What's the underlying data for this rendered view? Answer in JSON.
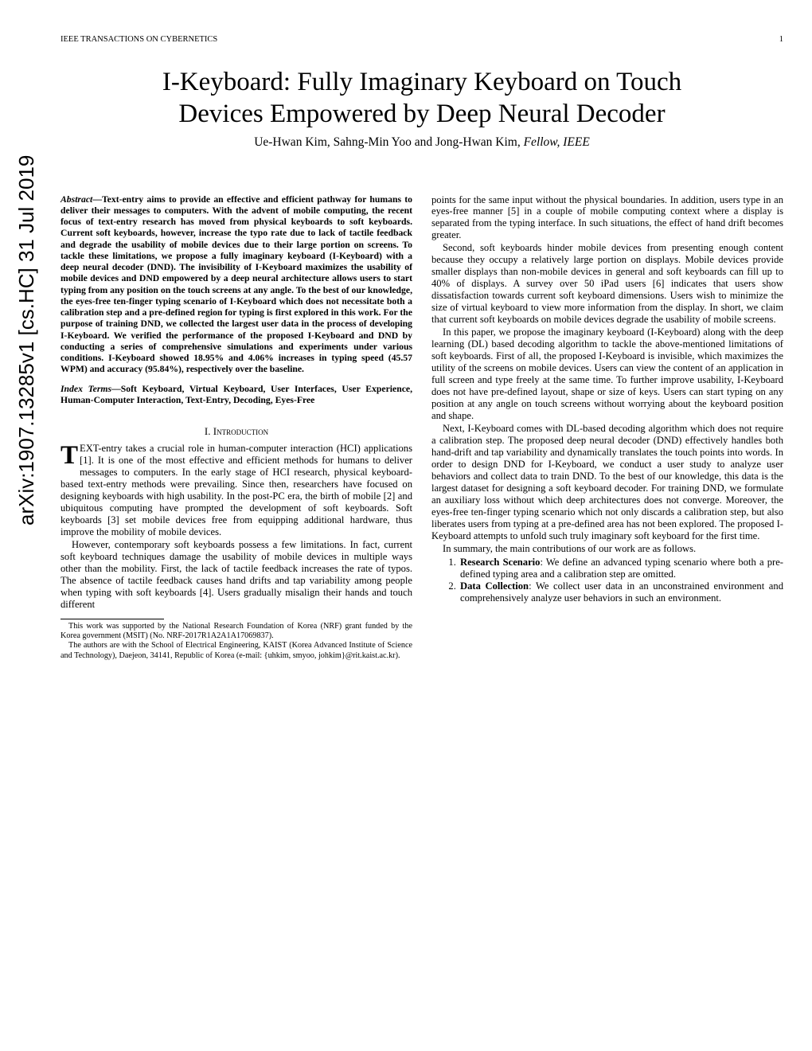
{
  "arxiv_id": "arXiv:1907.13285v1  [cs.HC]  31 Jul 2019",
  "running_head": {
    "left": "IEEE TRANSACTIONS ON CYBERNETICS",
    "page": "1"
  },
  "title_line1": "I-Keyboard: Fully Imaginary Keyboard on Touch",
  "title_line2": "Devices Empowered by Deep Neural Decoder",
  "authors_plain": "Ue-Hwan Kim, Sahng-Min Yoo and Jong-Hwan Kim, ",
  "authors_fellow": "Fellow, IEEE",
  "abstract_label": "Abstract",
  "abstract_body": "—Text-entry aims to provide an effective and efficient pathway for humans to deliver their messages to computers. With the advent of mobile computing, the recent focus of text-entry research has moved from physical keyboards to soft keyboards. Current soft keyboards, however, increase the typo rate due to lack of tactile feedback and degrade the usability of mobile devices due to their large portion on screens. To tackle these limitations, we propose a fully imaginary keyboard (I-Keyboard) with a deep neural decoder (DND). The invisibility of I-Keyboard maximizes the usability of mobile devices and DND empowered by a deep neural architecture allows users to start typing from any position on the touch screens at any angle. To the best of our knowledge, the eyes-free ten-finger typing scenario of I-Keyboard which does not necessitate both a calibration step and a pre-defined region for typing is first explored in this work. For the purpose of training DND, we collected the largest user data in the process of developing I-Keyboard. We verified the performance of the proposed I-Keyboard and DND by conducting a series of comprehensive simulations and experiments under various conditions. I-Keyboard showed 18.95% and 4.06% increases in typing speed (45.57 WPM) and accuracy (95.84%), respectively over the baseline.",
  "index_label": "Index Terms",
  "index_body": "—Soft Keyboard, Virtual Keyboard, User Interfaces, User Experience, Human-Computer Interaction, Text-Entry, Decoding, Eyes-Free",
  "section1": "I.  Introduction",
  "intro_p1": "TEXT-entry takes a crucial role in human-computer interaction (HCI) applications [1]. It is one of the most effective and efficient methods for humans to deliver messages to computers. In the early stage of HCI research, physical keyboard-based text-entry methods were prevailing. Since then, researchers have focused on designing keyboards with high usability. In the post-PC era, the birth of mobile [2] and ubiquitous computing have prompted the development of soft keyboards. Soft keyboards [3] set mobile devices free from equipping additional hardware, thus improve the mobility of mobile devices.",
  "intro_p2": "However, contemporary soft keyboards possess a few limitations. In fact, current soft keyboard techniques damage the usability of mobile devices in multiple ways other than the mobility. First, the lack of tactile feedback increases the rate of typos. The absence of tactile feedback causes hand drifts and tap variability among people when typing with soft keyboards [4]. Users gradually misalign their hands and touch different",
  "footnote1": "This work was supported by the National Research Foundation of Korea (NRF) grant funded by the Korea government (MSIT) (No. NRF-2017R1A2A1A17069837).",
  "footnote2": "The authors are with the School of Electrical Engineering, KAIST (Korea Advanced Institute of Science and Technology), Daejeon, 34141, Republic of Korea (e-mail: {uhkim, smyoo, johkim}@rit.kaist.ac.kr).",
  "r_p1": "points for the same input without the physical boundaries. In addition, users type in an eyes-free manner [5] in a couple of mobile computing context where a display is separated from the typing interface. In such situations, the effect of hand drift becomes greater.",
  "r_p2": "Second, soft keyboards hinder mobile devices from presenting enough content because they occupy a relatively large portion on displays. Mobile devices provide smaller displays than non-mobile devices in general and soft keyboards can fill up to 40% of displays. A survey over 50 iPad users [6] indicates that users show dissatisfaction towards current soft keyboard dimensions. Users wish to minimize the size of virtual keyboard to view more information from the display. In short, we claim that current soft keyboards on mobile devices degrade the usability of mobile screens.",
  "r_p3": "In this paper, we propose the imaginary keyboard (I-Keyboard) along with the deep learning (DL) based decoding algorithm to tackle the above-mentioned limitations of soft keyboards. First of all, the proposed I-Keyboard is invisible, which maximizes the utility of the screens on mobile devices. Users can view the content of an application in full screen and type freely at the same time. To further improve usability, I-Keyboard does not have pre-defined layout, shape or size of keys. Users can start typing on any position at any angle on touch screens without worrying about the keyboard position and shape.",
  "r_p4": "Next, I-Keyboard comes with DL-based decoding algorithm which does not require a calibration step. The proposed deep neural decoder (DND) effectively handles both hand-drift and tap variability and dynamically translates the touch points into words. In order to design DND for I-Keyboard, we conduct a user study to analyze user behaviors and collect data to train DND. To the best of our knowledge, this data is the largest dataset for designing a soft keyboard decoder. For training DND, we formulate an auxiliary loss without which deep architectures does not converge. Moreover, the eyes-free ten-finger typing scenario which not only discards a calibration step, but also liberates users from typing at a pre-defined area has not been explored. The proposed I-Keyboard attempts to unfold such truly imaginary soft keyboard for the first time.",
  "r_p5": "In summary, the main contributions of our work are as follows.",
  "contrib1_lead": "Research Scenario",
  "contrib1_rest": ": We define an advanced typing scenario where both a pre-defined typing area and a calibration step are omitted.",
  "contrib2_lead": "Data Collection",
  "contrib2_rest": ": We collect user data in an unconstrained environment and comprehensively analyze user behaviors in such an environment."
}
